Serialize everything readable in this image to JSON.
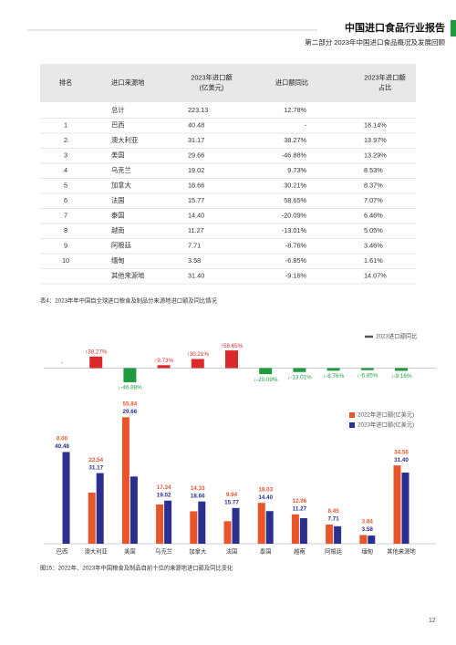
{
  "header": {
    "title": "中国进口食品行业报告",
    "subtitle": "第二部分 2023年中国进口食品概况及发展回顾"
  },
  "table": {
    "columns": [
      [
        "排名"
      ],
      [
        "进口来源地"
      ],
      [
        "2023年进口额",
        "(亿美元)"
      ],
      [
        "进口额同比"
      ],
      [
        "2023年进口额",
        "占比"
      ]
    ],
    "rows": [
      [
        null,
        "总计",
        "223.13",
        "12.78%",
        null
      ],
      [
        "1",
        "巴西",
        "40.48",
        "-",
        "18.14%"
      ],
      [
        "2",
        "澳大利亚",
        "31.17",
        "38.27%",
        "13.97%"
      ],
      [
        "3",
        "美国",
        "29.66",
        "-46.88%",
        "13.29%"
      ],
      [
        "4",
        "乌克兰",
        "19.02",
        "9.73%",
        "8.53%"
      ],
      [
        "5",
        "加拿大",
        "18.66",
        "30.21%",
        "8.37%"
      ],
      [
        "6",
        "法国",
        "15.77",
        "58.65%",
        "7.07%"
      ],
      [
        "7",
        "泰国",
        "14.40",
        "-20.09%",
        "6.46%"
      ],
      [
        "8",
        "越南",
        "11.27",
        "-13.01%",
        "5.05%"
      ],
      [
        "9",
        "阿根廷",
        "7.71",
        "-8.76%",
        "3.46%"
      ],
      [
        "10",
        "缅甸",
        "3.58",
        "-6.85%",
        "1.61%"
      ],
      [
        null,
        "其他来源地",
        "31.40",
        "-9.16%",
        "14.07%"
      ]
    ]
  },
  "table_caption": "表4：2023年年中国自全球进口粮食及制品分来源地进口额及同比情况",
  "chart_data": [
    {
      "type": "bar",
      "series": [
        {
          "name": "2023进口额同比",
          "color": "#555555",
          "values": [
            null,
            38.27,
            -46.88,
            9.73,
            30.21,
            58.65,
            -20.09,
            -13.01,
            -8.76,
            -6.85,
            -9.16
          ],
          "value_labels": [
            "-",
            "↑38.27%",
            "↓-46.88%",
            "↑9.73%",
            "↑30.21%",
            "↑58.65%",
            "↓-20.09%",
            "↓-13.01%",
            "↓-8.76%",
            "↓-6.85%",
            "↓-9.16%"
          ]
        }
      ],
      "positive_color": "#d9292b",
      "negative_color": "#1f9a3f",
      "ylim": [
        -50,
        62
      ],
      "legend": "top-right"
    },
    {
      "type": "grouped-bar",
      "categories": [
        "巴西",
        "澳大利亚",
        "美国",
        "乌克兰",
        "加拿大",
        "法国",
        "泰国",
        "越南",
        "阿根廷",
        "缅甸",
        "其他来源地"
      ],
      "series": [
        {
          "name": "2022年进口额(亿美元)",
          "color": "#e8552a",
          "values": [
            0.0,
            22.54,
            55.84,
            17.34,
            14.33,
            9.94,
            18.03,
            12.96,
            8.45,
            3.84,
            34.56
          ],
          "value_labels": [
            "0.00",
            "22.54",
            "55.84",
            "17.34",
            "14.33",
            "9.94",
            "18.03",
            "12.96",
            "8.45",
            "3.84",
            "34.56"
          ]
        },
        {
          "name": "2023年进口额(亿美元)",
          "color": "#2b2f8f",
          "values": [
            40.48,
            31.17,
            29.66,
            19.02,
            18.66,
            15.77,
            14.4,
            11.27,
            7.71,
            3.58,
            31.4
          ],
          "value_labels": [
            "40.48",
            "31.17",
            "29.66",
            "19.02",
            "18.66",
            "15.77",
            "14.40",
            "11.27",
            "7.71",
            "3.58",
            "31.40"
          ]
        }
      ],
      "ylim": [
        0,
        60
      ],
      "legend": "top-right"
    }
  ],
  "figure_caption": "图15：2022年、2023年中国粮食及制品自前十位的来源地进口额及同比变化",
  "page_number": "12"
}
